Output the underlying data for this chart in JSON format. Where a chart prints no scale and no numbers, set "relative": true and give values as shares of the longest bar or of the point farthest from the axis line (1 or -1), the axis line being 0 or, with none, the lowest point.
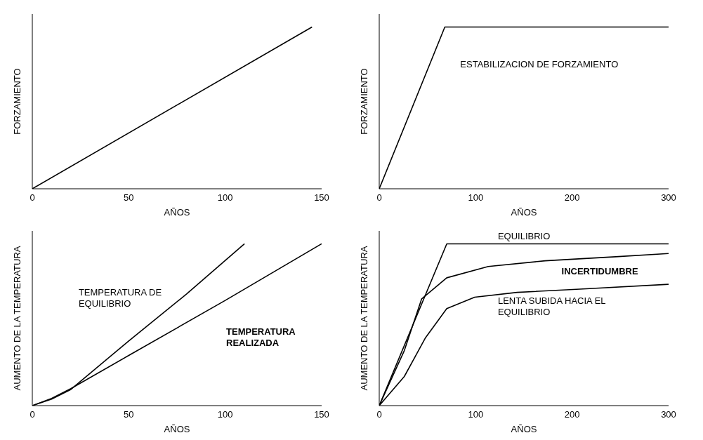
{
  "chart_data": [
    {
      "type": "line",
      "relative": true,
      "xlabel": "AÑOS",
      "ylabel": "FORZAMIENTO",
      "xlim": [
        0,
        150
      ],
      "xticks": [
        0,
        50,
        100,
        150
      ],
      "legend": false,
      "grid": false,
      "marker": "none",
      "line_style": "solid",
      "series": [
        {
          "color": "#000000",
          "x": [
            0,
            145
          ],
          "values": [
            0,
            1
          ]
        }
      ]
    },
    {
      "type": "line",
      "relative": true,
      "xlabel": "AÑOS",
      "ylabel": "FORZAMIENTO",
      "xlim": [
        0,
        300
      ],
      "xticks": [
        0,
        100,
        200,
        300
      ],
      "legend": false,
      "grid": false,
      "marker": "none",
      "line_style": "solid",
      "series": [
        {
          "color": "#000000",
          "x": [
            0,
            68,
            300
          ],
          "values": [
            0,
            1,
            1
          ]
        }
      ],
      "annotations": [
        "ESTABILIZACION DE FORZAMIENTO"
      ]
    },
    {
      "type": "line",
      "relative": true,
      "xlabel": "AÑOS",
      "ylabel": "AUMENTO DE LA TEMPERATURA",
      "xlim": [
        0,
        150
      ],
      "xticks": [
        0,
        50,
        100,
        150
      ],
      "legend": false,
      "grid": false,
      "marker": "none",
      "line_style": "solid",
      "series": [
        {
          "color": "#000000",
          "x": [
            0,
            10,
            20,
            50,
            80,
            110
          ],
          "values": [
            0,
            0.04,
            0.1,
            0.4,
            0.69,
            1
          ]
        },
        {
          "color": "#000000",
          "x": [
            0,
            10,
            20,
            50,
            100,
            150
          ],
          "values": [
            0,
            0.045,
            0.105,
            0.31,
            0.65,
            1
          ]
        }
      ],
      "annotations": [
        "TEMPERATURA DE\nEQUILIBRIO",
        "TEMPERATURA\nREALIZADA"
      ]
    },
    {
      "type": "line",
      "relative": true,
      "xlabel": "AÑOS",
      "ylabel": "AUMENTO DE LA TEMPERATURA",
      "xlim": [
        0,
        300
      ],
      "xticks": [
        0,
        100,
        200,
        300
      ],
      "legend": false,
      "grid": false,
      "marker": "none",
      "line_style": "solid",
      "series": [
        {
          "color": "#000000",
          "x": [
            0,
            70,
            300
          ],
          "values": [
            0,
            1,
            1
          ]
        },
        {
          "color": "#000000",
          "x": [
            0,
            26,
            44,
            70,
            113,
            172,
            245,
            300
          ],
          "values": [
            0,
            0.34,
            0.66,
            0.79,
            0.86,
            0.895,
            0.92,
            0.94
          ]
        },
        {
          "color": "#000000",
          "x": [
            0,
            26,
            48,
            70,
            99,
            143,
            208,
            300
          ],
          "values": [
            0,
            0.18,
            0.42,
            0.6,
            0.67,
            0.7,
            0.72,
            0.75
          ]
        }
      ],
      "annotations": [
        "EQUILIBRIO",
        "INCERTIDUMBRE",
        "LENTA SUBIDA HACIA EL\nEQUILIBRIO"
      ]
    }
  ]
}
